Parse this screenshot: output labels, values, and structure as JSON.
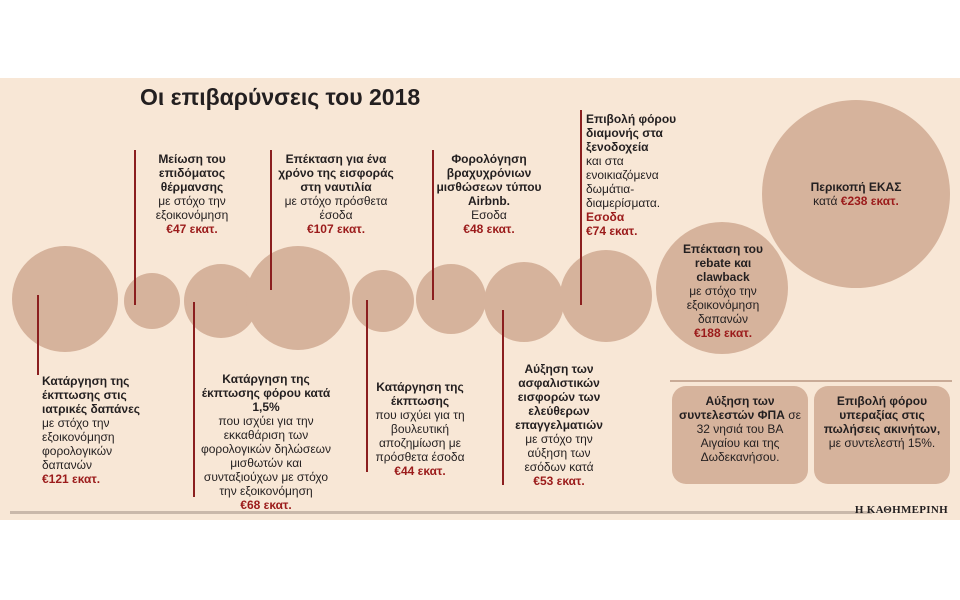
{
  "title": "Οι επιβαρύνσεις του 2018",
  "items": [
    {
      "id": "iatrikes",
      "head": "Κατάργηση της έκπτωσης στις ιατρικές δαπάνες",
      "desc": "με στόχο την εξοικονόμηση φορολογικών δαπανών",
      "value": "€121 εκατ."
    },
    {
      "id": "thermansi",
      "head": "Μείωση του επιδόματος θέρμανσης",
      "desc": "με στόχο την εξοικονόμηση",
      "value": "€47 εκατ."
    },
    {
      "id": "ekptosi-forou",
      "head": "Κατάργηση της έκπτωσης φόρου κατά 1,5%",
      "desc": "που ισχύει για την εκκαθάριση των φορολογικών δηλώσεων μισθωτών και συνταξιούχων με στόχο την εξοικονόμηση",
      "value": "€68 εκατ."
    },
    {
      "id": "naftilia",
      "head": "Επέκταση για ένα χρόνο της εισφοράς στη ναυτιλία",
      "desc": "με στόχο πρόσθετα έσοδα",
      "value": "€107 εκατ."
    },
    {
      "id": "vouleftiki",
      "head": "Κατάργηση της έκπτωσης",
      "desc": "που ισχύει για τη βουλευτική αποζημίωση με πρόσθετα έσοδα",
      "value": "€44 εκατ."
    },
    {
      "id": "airbnb",
      "head": "Φορολόγηση βραχυχρόνιων μισθώσεων τύπου Airbnb.",
      "desc": "Εσοδα",
      "value": "€48 εκατ."
    },
    {
      "id": "asfalistikes",
      "head": "Αύξηση των ασφαλιστικών εισφορών των ελεύθερων επαγγελματιών",
      "desc": "με στόχο την αύξηση των εσόδων κατά",
      "value": "€53 εκατ."
    },
    {
      "id": "diamoni",
      "head": "Επιβολή φόρου διαμονής στα ξενοδοχεία",
      "desc": "και στα ενοικιαζόμενα δωμάτια-διαμερίσματα.",
      "desc2": "Εσοδα",
      "value": "€74 εκατ."
    },
    {
      "id": "rebate",
      "head": "Επέκταση του rebate και clawback",
      "desc": "με στόχο την εξοικονόμηση δαπανών",
      "value": "€188 εκατ."
    },
    {
      "id": "ekas",
      "head": "Περικοπή ΕΚΑΣ",
      "desc": "κατά",
      "value": "€238 εκατ."
    }
  ],
  "boxes": [
    {
      "id": "fpa",
      "head": "Αύξηση των συντελεστών ΦΠΑ",
      "desc": "σε 32 νησιά του ΒΑ Αιγαίου και της Δωδεκανήσου."
    },
    {
      "id": "ypeaxia",
      "head": "Επιβολή φόρου υπεραξίας στις πωλήσεις ακινήτων,",
      "desc": "με συντελεστή 15%."
    }
  ],
  "logo": "Η ΚΑΘΗΜΕΡΙΝΗ",
  "colors": {
    "background": "#f8e7d6",
    "circle": "#d6b39c",
    "accent": "#9b1b1b",
    "line": "#8b1f1f"
  }
}
